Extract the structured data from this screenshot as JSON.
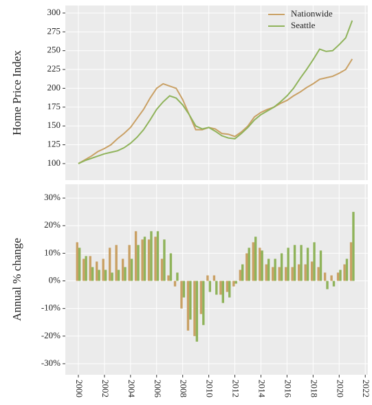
{
  "chart_data": [
    {
      "type": "line",
      "y_label": "Home Price Index",
      "x": [
        2000,
        2000.5,
        2001,
        2001.5,
        2002,
        2002.5,
        2003,
        2003.5,
        2004,
        2004.5,
        2005,
        2005.5,
        2006,
        2006.5,
        2007,
        2007.5,
        2008,
        2008.5,
        2009,
        2009.5,
        2010,
        2010.5,
        2011,
        2011.5,
        2012,
        2012.5,
        2013,
        2013.5,
        2014,
        2014.5,
        2015,
        2015.5,
        2016,
        2016.5,
        2017,
        2017.5,
        2018,
        2018.5,
        2019,
        2019.5,
        2020,
        2020.5,
        2021
      ],
      "series": [
        {
          "name": "Nationwide",
          "color": "#c9a064",
          "values": [
            100,
            105,
            110,
            116,
            120,
            125,
            133,
            140,
            148,
            160,
            172,
            187,
            200,
            206,
            203,
            200,
            185,
            165,
            145,
            145,
            148,
            146,
            140,
            139,
            136,
            142,
            150,
            162,
            168,
            172,
            175,
            180,
            184,
            190,
            195,
            201,
            206,
            212,
            214,
            216,
            220,
            225,
            239
          ]
        },
        {
          "name": "Seattle",
          "color": "#8fb35a",
          "values": [
            100,
            104,
            107,
            110,
            113,
            115,
            117,
            121,
            127,
            135,
            145,
            158,
            172,
            182,
            190,
            187,
            178,
            165,
            150,
            146,
            148,
            143,
            137,
            134,
            133,
            140,
            148,
            158,
            165,
            170,
            175,
            182,
            190,
            200,
            213,
            225,
            238,
            252,
            249,
            250,
            258,
            267,
            290
          ]
        }
      ],
      "xlim": [
        1999,
        2022.2
      ],
      "xticks": [
        2000,
        2002,
        2004,
        2006,
        2008,
        2010,
        2012,
        2014,
        2016,
        2018,
        2020,
        2022
      ],
      "ylim": [
        78,
        310
      ],
      "yticks": [
        100,
        125,
        150,
        175,
        200,
        225,
        250,
        275,
        300
      ],
      "grid": true,
      "legend": "top-right"
    },
    {
      "type": "bar",
      "y_label": "Annual % change",
      "x": [
        2000,
        2000.5,
        2001,
        2001.5,
        2002,
        2002.5,
        2003,
        2003.5,
        2004,
        2004.5,
        2005,
        2005.5,
        2006,
        2006.5,
        2007,
        2007.5,
        2008,
        2008.5,
        2009,
        2009.5,
        2010,
        2010.5,
        2011,
        2011.5,
        2012,
        2012.5,
        2013,
        2013.5,
        2014,
        2014.5,
        2015,
        2015.5,
        2016,
        2016.5,
        2017,
        2017.5,
        2018,
        2018.5,
        2019,
        2019.5,
        2020,
        2020.5,
        2021
      ],
      "series": [
        {
          "name": "Nationwide",
          "color": "#c9a064",
          "values": [
            14,
            8,
            9,
            7,
            8,
            12,
            13,
            8,
            13,
            18,
            15,
            15,
            16,
            8,
            2,
            -2,
            -10,
            -18,
            -20,
            -12,
            2,
            2,
            -5,
            -4,
            -2,
            4,
            10,
            14,
            12,
            6,
            5,
            5,
            5,
            5,
            6,
            6,
            7,
            5,
            3,
            2,
            3,
            6,
            14
          ]
        },
        {
          "name": "Seattle",
          "color": "#8fb35a",
          "values": [
            12,
            9,
            5,
            4,
            4,
            3,
            4,
            5,
            8,
            13,
            16,
            18,
            18,
            15,
            10,
            3,
            -6,
            -14,
            -22,
            -16,
            -4,
            -5,
            -8,
            -6,
            -1,
            6,
            12,
            16,
            11,
            8,
            8,
            10,
            12,
            13,
            13,
            12,
            14,
            11,
            -3,
            -2,
            4,
            8,
            25
          ]
        }
      ],
      "xlim": [
        1999,
        2022.2
      ],
      "xticks": [
        2000,
        2002,
        2004,
        2006,
        2008,
        2010,
        2012,
        2014,
        2016,
        2018,
        2020,
        2022
      ],
      "ylim": [
        -34,
        35
      ],
      "yticks": [
        {
          "value": -30,
          "label": "-30%"
        },
        {
          "value": -20,
          "label": "-20%"
        },
        {
          "value": -10,
          "label": "-10%"
        },
        {
          "value": 0,
          "label": "0%"
        },
        {
          "value": 10,
          "label": "10%"
        },
        {
          "value": 20,
          "label": "20%"
        },
        {
          "value": 30,
          "label": "30%"
        }
      ],
      "grid": true
    }
  ]
}
